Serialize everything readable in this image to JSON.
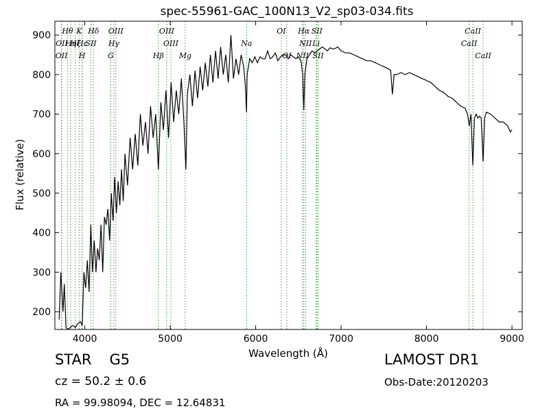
{
  "chart_data": {
    "type": "line",
    "title": "spec-55961-GAC_100N13_V2_sp03-034.fits",
    "xlabel": "Wavelength (Å)",
    "ylabel": "Flux (relative)",
    "xlim": [
      3650,
      9120
    ],
    "ylim": [
      155,
      935
    ],
    "xticks": [
      4000,
      5000,
      6000,
      7000,
      8000,
      9000
    ],
    "yticks": [
      200,
      300,
      400,
      500,
      600,
      700,
      800,
      900
    ],
    "grid": false,
    "line_color": "#000000",
    "marker_line_color": "#2ca02c",
    "series": [
      {
        "x": [
          3700,
          3720,
          3745,
          3760,
          3780,
          3800,
          3830,
          3860,
          3890,
          3920,
          3950,
          3970,
          3990,
          4010,
          4030,
          4050,
          4070,
          4090,
          4110,
          4130,
          4150,
          4170,
          4190,
          4210,
          4230,
          4250,
          4270,
          4290,
          4310,
          4330,
          4350,
          4370,
          4390,
          4410,
          4430,
          4450,
          4470,
          4500,
          4530,
          4560,
          4590,
          4620,
          4650,
          4680,
          4710,
          4740,
          4770,
          4800,
          4830,
          4861,
          4890,
          4920,
          4950,
          4980,
          5010,
          5040,
          5070,
          5100,
          5130,
          5160,
          5183,
          5200,
          5230,
          5260,
          5290,
          5320,
          5350,
          5380,
          5410,
          5440,
          5470,
          5500,
          5530,
          5560,
          5590,
          5620,
          5650,
          5680,
          5710,
          5740,
          5770,
          5800,
          5830,
          5860,
          5880,
          5893,
          5900,
          5930,
          5960,
          5990,
          6020,
          6050,
          6080,
          6110,
          6140,
          6170,
          6200,
          6230,
          6260,
          6290,
          6320,
          6350,
          6380,
          6410,
          6440,
          6470,
          6500,
          6530,
          6550,
          6563,
          6575,
          6600,
          6630,
          6660,
          6690,
          6720,
          6750,
          6780,
          6810,
          6840,
          6870,
          6900,
          6930,
          6960,
          7000,
          7050,
          7100,
          7150,
          7200,
          7250,
          7300,
          7350,
          7400,
          7450,
          7500,
          7550,
          7580,
          7600,
          7620,
          7650,
          7700,
          7750,
          7800,
          7850,
          7900,
          7950,
          8000,
          8050,
          8100,
          8150,
          8200,
          8250,
          8300,
          8350,
          8400,
          8450,
          8480,
          8500,
          8520,
          8542,
          8560,
          8580,
          8600,
          8620,
          8640,
          8662,
          8680,
          8700,
          8750,
          8800,
          8850,
          8900,
          8950,
          8980,
          9000
        ],
        "y": [
          180,
          300,
          200,
          270,
          160,
          155,
          160,
          165,
          160,
          170,
          175,
          165,
          300,
          260,
          330,
          250,
          420,
          300,
          380,
          300,
          360,
          330,
          420,
          300,
          440,
          420,
          460,
          380,
          500,
          430,
          540,
          450,
          530,
          470,
          560,
          480,
          600,
          520,
          640,
          560,
          650,
          570,
          700,
          620,
          680,
          600,
          720,
          640,
          700,
          560,
          730,
          660,
          760,
          640,
          780,
          680,
          760,
          700,
          790,
          680,
          560,
          750,
          800,
          720,
          810,
          740,
          820,
          760,
          830,
          770,
          850,
          780,
          860,
          790,
          870,
          800,
          850,
          780,
          900,
          790,
          840,
          800,
          850,
          820,
          770,
          705,
          800,
          840,
          830,
          845,
          830,
          845,
          840,
          840,
          860,
          840,
          845,
          855,
          835,
          845,
          850,
          850,
          840,
          850,
          845,
          840,
          845,
          835,
          800,
          710,
          800,
          840,
          850,
          860,
          855,
          860,
          865,
          870,
          865,
          860,
          868,
          865,
          866,
          870,
          860,
          855,
          855,
          850,
          845,
          840,
          835,
          835,
          830,
          825,
          820,
          815,
          810,
          750,
          800,
          800,
          805,
          800,
          805,
          800,
          795,
          790,
          785,
          780,
          770,
          760,
          755,
          745,
          740,
          730,
          720,
          715,
          700,
          670,
          700,
          570,
          690,
          700,
          690,
          695,
          690,
          580,
          690,
          705,
          700,
          690,
          680,
          680,
          670,
          655,
          660
        ]
      }
    ],
    "spectral_lines": [
      {
        "label": "OII",
        "x": 3727,
        "row": 2
      },
      {
        "label": "Hθ",
        "x": 3798,
        "row": 0
      },
      {
        "label": "OII",
        "x": 3730,
        "row": 1
      },
      {
        "label": "Hη",
        "x": 3835,
        "row": 1
      },
      {
        "label": "Hζ",
        "x": 3889,
        "row": 1
      },
      {
        "label": "K",
        "x": 3934,
        "row": 0
      },
      {
        "label": "Hε",
        "x": 3970,
        "row": 1
      },
      {
        "label": "H",
        "x": 3968,
        "row": 2
      },
      {
        "label": "SII",
        "x": 4072,
        "row": 1
      },
      {
        "label": "Hδ",
        "x": 4102,
        "row": 0
      },
      {
        "label": "OIII",
        "x": 4363,
        "row": 0
      },
      {
        "label": "Hγ",
        "x": 4340,
        "row": 1
      },
      {
        "label": "G",
        "x": 4305,
        "row": 2
      },
      {
        "label": "OIII",
        "x": 4959,
        "row": 0
      },
      {
        "label": "OIII",
        "x": 5007,
        "row": 1
      },
      {
        "label": "Hβ",
        "x": 4861,
        "row": 2
      },
      {
        "label": "Mg",
        "x": 5175,
        "row": 2
      },
      {
        "label": "Na",
        "x": 5894,
        "row": 1
      },
      {
        "label": "OI",
        "x": 6300,
        "row": 0
      },
      {
        "label": "OI",
        "x": 6364,
        "row": 2
      },
      {
        "label": "Hα",
        "x": 6563,
        "row": 0
      },
      {
        "label": "NII",
        "x": 6584,
        "row": 1
      },
      {
        "label": "NII",
        "x": 6548,
        "row": 2
      },
      {
        "label": "SII",
        "x": 6716,
        "row": 0
      },
      {
        "label": "Li",
        "x": 6708,
        "row": 1
      },
      {
        "label": "SII",
        "x": 6731,
        "row": 2
      },
      {
        "label": "CaII",
        "x": 8542,
        "row": 0
      },
      {
        "label": "CaII",
        "x": 8498,
        "row": 1
      },
      {
        "label": "CaII",
        "x": 8662,
        "row": 2
      }
    ]
  },
  "info": {
    "class": "STAR",
    "subclass": "G5",
    "survey": "LAMOST DR1",
    "cz": "cz = 50.2 ± 0.6",
    "obs_date": "Obs-Date:20120203",
    "radec": "RA = 99.98094, DEC = 12.64831"
  }
}
